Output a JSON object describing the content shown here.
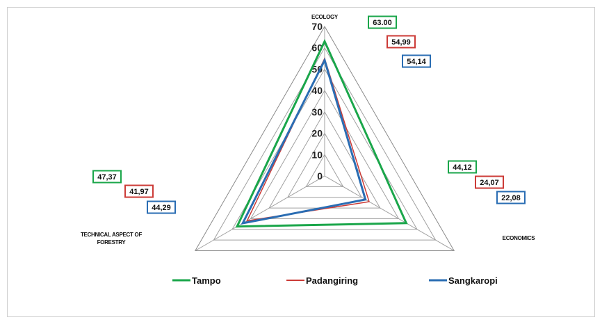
{
  "chart_data": {
    "type": "radar",
    "axes": [
      "ECOLOGY",
      "ECONOMICS",
      "TECHNICAL ASPECT OF FORESTRY"
    ],
    "rlim": [
      0,
      70
    ],
    "ticks": [
      "0",
      "10",
      "20",
      "30",
      "40",
      "50",
      "60",
      "70"
    ],
    "series": [
      {
        "name": "Tampo",
        "values": [
          63.0,
          44.12,
          47.37
        ],
        "labels": [
          "63.00",
          "44,12",
          "47,37"
        ],
        "color": "#1aa64a"
      },
      {
        "name": "Padangiring",
        "values": [
          54.99,
          24.07,
          41.97
        ],
        "labels": [
          "54,99",
          "24,07",
          "41,97"
        ],
        "color": "#cc3b37"
      },
      {
        "name": "Sangkaropi",
        "values": [
          54.14,
          22.08,
          44.29
        ],
        "labels": [
          "54,14",
          "22,08",
          "44,29"
        ],
        "color": "#2a6db3"
      }
    ],
    "grid": true,
    "legend": "bottom"
  }
}
